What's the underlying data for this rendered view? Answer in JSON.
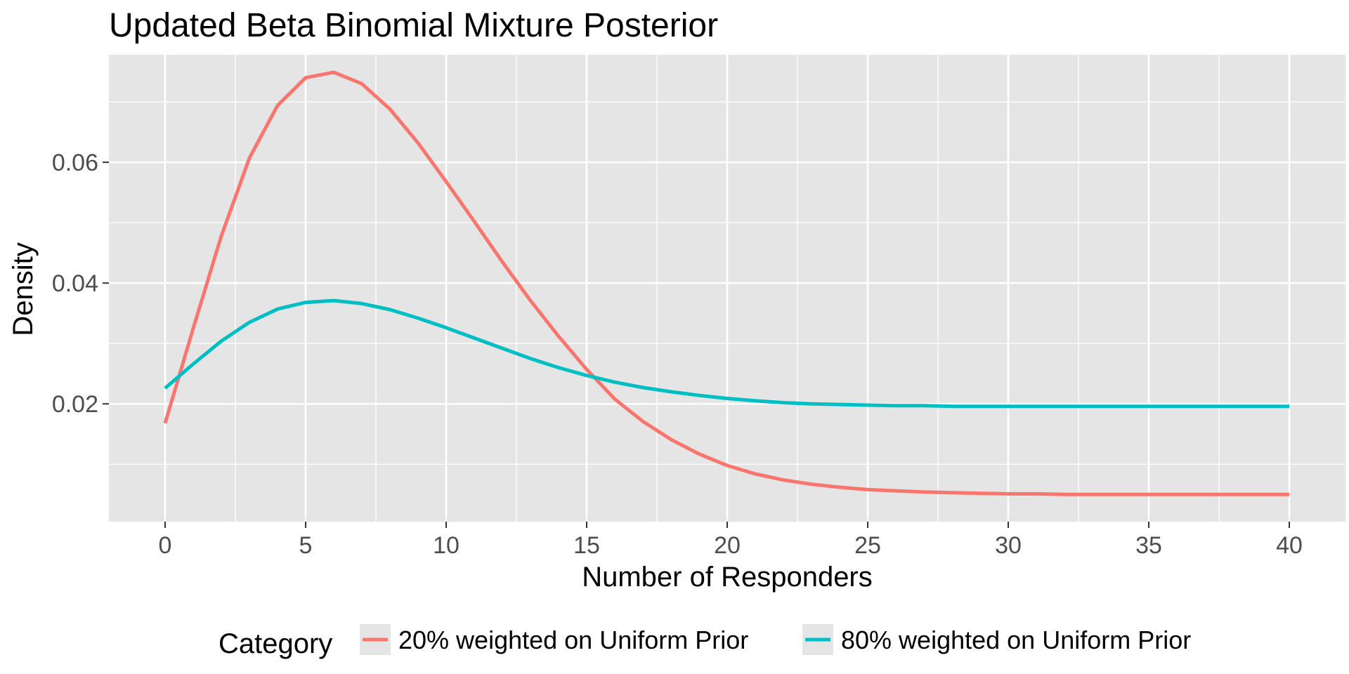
{
  "chart_data": {
    "type": "line",
    "title": "Updated Beta Binomial Mixture Posterior",
    "xlabel": "Number of Responders",
    "ylabel": "Density",
    "xlim": [
      -2,
      42
    ],
    "ylim": [
      0.0005,
      0.0778
    ],
    "x_ticks": [
      0,
      5,
      10,
      15,
      20,
      25,
      30,
      35,
      40
    ],
    "x_tick_labels": [
      "0",
      "5",
      "10",
      "15",
      "20",
      "25",
      "30",
      "35",
      "40"
    ],
    "y_ticks": [
      0.02,
      0.04,
      0.06
    ],
    "y_tick_labels": [
      "0.02",
      "0.04",
      "0.06"
    ],
    "grid": true,
    "background": "#e5e5e5",
    "legend": {
      "title": "Category",
      "position": "bottom"
    },
    "x": [
      0,
      1,
      2,
      3,
      4,
      5,
      6,
      7,
      8,
      9,
      10,
      11,
      12,
      13,
      14,
      15,
      16,
      17,
      18,
      19,
      20,
      21,
      22,
      23,
      24,
      25,
      26,
      27,
      28,
      29,
      30,
      31,
      32,
      33,
      34,
      35,
      36,
      37,
      38,
      39,
      40
    ],
    "series": [
      {
        "name": "20% weighted on Uniform Prior",
        "color": "#f8766d",
        "values": [
          0.0168,
          0.0325,
          0.0478,
          0.0607,
          0.0694,
          0.074,
          0.0749,
          0.073,
          0.0688,
          0.0632,
          0.0568,
          0.0502,
          0.0435,
          0.0371,
          0.0312,
          0.0257,
          0.0208,
          0.0171,
          0.0141,
          0.0117,
          0.0098,
          0.0084,
          0.0074,
          0.0067,
          0.0062,
          0.0058,
          0.0056,
          0.0054,
          0.0053,
          0.0052,
          0.0051,
          0.0051,
          0.005,
          0.005,
          0.005,
          0.005,
          0.005,
          0.005,
          0.005,
          0.005,
          0.005
        ]
      },
      {
        "name": "80% weighted on Uniform Prior",
        "color": "#00bfc4",
        "values": [
          0.0226,
          0.0266,
          0.0304,
          0.0335,
          0.0357,
          0.0368,
          0.0371,
          0.0366,
          0.0356,
          0.0342,
          0.0326,
          0.0309,
          0.0292,
          0.0275,
          0.026,
          0.0247,
          0.0236,
          0.0227,
          0.022,
          0.0214,
          0.0209,
          0.0205,
          0.0202,
          0.02,
          0.0199,
          0.0198,
          0.0197,
          0.0197,
          0.0196,
          0.0196,
          0.0196,
          0.0196,
          0.0196,
          0.0196,
          0.0196,
          0.0196,
          0.0196,
          0.0196,
          0.0196,
          0.0196,
          0.0196
        ]
      }
    ]
  }
}
